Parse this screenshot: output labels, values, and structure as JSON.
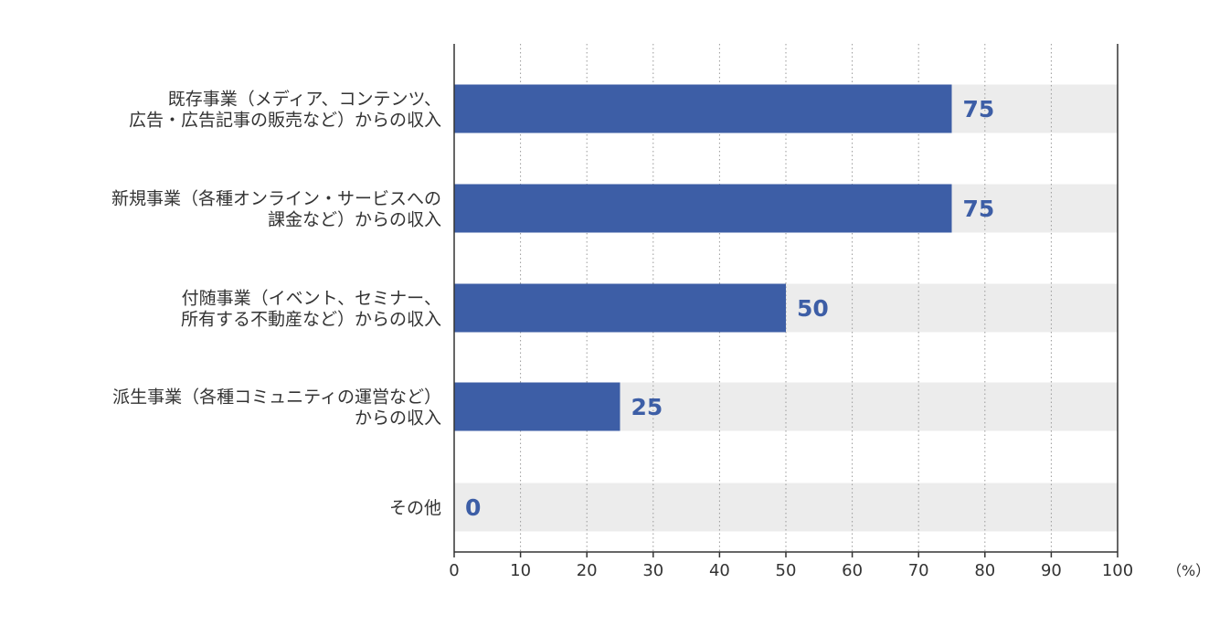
{
  "chart_data": {
    "type": "bar",
    "orientation": "horizontal",
    "categories": [
      [
        "既存事業（メディア、コンテンツ、",
        "広告・広告記事の販売など）からの収入"
      ],
      [
        "新規事業（各種オンライン・サービスへの",
        "課金など）からの収入"
      ],
      [
        "付随事業（イベント、セミナー、",
        "所有する不動産など）からの収入"
      ],
      [
        "派生事業（各種コミュニティの運営など）",
        "からの収入"
      ],
      [
        "その他"
      ]
    ],
    "values": [
      75,
      75,
      50,
      25,
      0
    ],
    "xlim": [
      0,
      100
    ],
    "xticks": [
      0,
      10,
      20,
      30,
      40,
      50,
      60,
      70,
      80,
      90,
      100
    ],
    "unit_label": "（%）",
    "grid": "vertical-dotted",
    "legend": "none",
    "colors": {
      "bar": "#3d5ea6",
      "track": "#ececec",
      "value_text": "#3d5ea6",
      "grid": "#999999",
      "axis": "#333333"
    }
  }
}
